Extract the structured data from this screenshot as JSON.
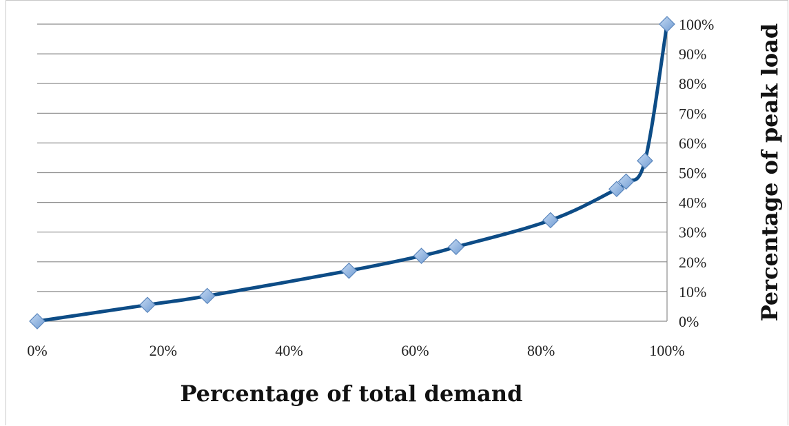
{
  "chart_data": {
    "type": "line",
    "title": "",
    "xlabel": "Percentage of total demand",
    "ylabel": "Percentage of peak load",
    "xlim": [
      0,
      100
    ],
    "ylim": [
      0,
      100
    ],
    "x_ticks": [
      "0%",
      "20%",
      "40%",
      "60%",
      "80%",
      "100%"
    ],
    "y_ticks": [
      "0%",
      "10%",
      "20%",
      "30%",
      "40%",
      "50%",
      "60%",
      "70%",
      "80%",
      "90%",
      "100%"
    ],
    "grid": true,
    "y_axis_side": "right",
    "legend": "none",
    "series": [
      {
        "line_color": "#0d4c86",
        "marker": "diamond",
        "marker_color": "#8db4e2",
        "points": [
          {
            "x": 0,
            "y": 0
          },
          {
            "x": 17.5,
            "y": 5.5
          },
          {
            "x": 27,
            "y": 8.5
          },
          {
            "x": 49.5,
            "y": 17
          },
          {
            "x": 61,
            "y": 22
          },
          {
            "x": 66.5,
            "y": 25
          },
          {
            "x": 81.5,
            "y": 34
          },
          {
            "x": 92,
            "y": 44.5
          },
          {
            "x": 93.5,
            "y": 47
          },
          {
            "x": 96.5,
            "y": 54
          },
          {
            "x": 100,
            "y": 100
          }
        ]
      }
    ]
  }
}
